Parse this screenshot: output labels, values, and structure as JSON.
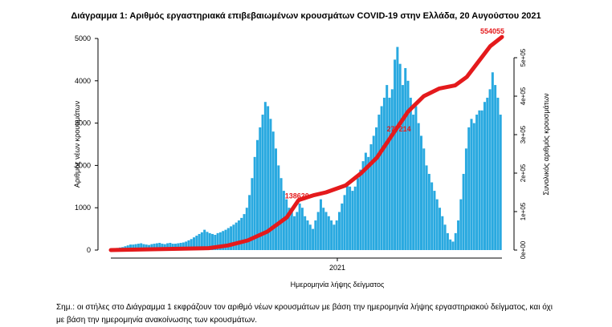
{
  "chart_data": {
    "type": "bar",
    "title": "Διάγραμμα 1: Αριθμός εργαστηριακά επιβεβαιωμένων κρουσμάτων COVID-19 στην Ελλάδα, 20 Αυγούστου 2021",
    "xlabel": "Ημερομηνία λήψης δείγματος",
    "ylabel": "Αριθμός νέων κρουσμάτων",
    "y2label": "Συνολικός αριθμός κρουσμάτων",
    "x_tick_labels": [
      "2021"
    ],
    "y_ticks": [
      "0",
      "1000",
      "2000",
      "3000",
      "4000",
      "5000"
    ],
    "y2_ticks": [
      "0e+00",
      "1e+05",
      "2e+05",
      "3e+05",
      "4e+05",
      "5e+05"
    ],
    "ylim": [
      0,
      5000
    ],
    "y2lim": [
      0,
      550000
    ],
    "bar_color": "#29a9e0",
    "line_color": "#e41a1c",
    "series": [
      {
        "kind": "bar",
        "values": [
          30,
          40,
          50,
          60,
          70,
          90,
          110,
          130,
          130,
          140,
          150,
          160,
          140,
          130,
          120,
          140,
          150,
          160,
          170,
          150,
          140,
          160,
          170,
          150,
          150,
          160,
          170,
          180,
          200,
          230,
          260,
          300,
          340,
          380,
          420,
          480,
          430,
          400,
          380,
          360,
          400,
          420,
          450,
          480,
          520,
          560,
          600,
          650,
          700,
          760,
          850,
          1000,
          1300,
          1700,
          2200,
          2600,
          2900,
          3200,
          3500,
          3400,
          3100,
          2800,
          2400,
          2000,
          1700,
          1400,
          1200,
          1000,
          900,
          800,
          900,
          1100,
          1000,
          800,
          700,
          600,
          500,
          700,
          900,
          1200,
          1000,
          900,
          800,
          700,
          600,
          700,
          900,
          1100,
          1300,
          1600,
          1500,
          1400,
          1500,
          1700,
          1900,
          2100,
          2300,
          2200,
          2500,
          2700,
          2900,
          3200,
          3400,
          3600,
          3900,
          3600,
          3800,
          4500,
          4800,
          4400,
          3900,
          4300,
          4000,
          3600,
          3200,
          3400,
          3000,
          2700,
          2400,
          2000,
          1800,
          1600,
          1400,
          1200,
          1000,
          800,
          600,
          400,
          250,
          200,
          400,
          700,
          1200,
          1800,
          2400,
          2900,
          3100,
          3000,
          3200,
          3300,
          3300,
          3500,
          3600,
          3800,
          4200,
          3900,
          3600,
          3200
        ]
      },
      {
        "kind": "line",
        "name": "cumulative",
        "x_fraction": [
          0.0,
          0.25,
          0.3,
          0.35,
          0.4,
          0.45,
          0.48,
          0.52,
          0.55,
          0.6,
          0.64,
          0.68,
          0.72,
          0.76,
          0.8,
          0.84,
          0.88,
          0.91,
          0.94,
          0.97,
          1.0
        ],
        "values": [
          0,
          5000,
          12000,
          25000,
          48000,
          85000,
          130000,
          143000,
          150000,
          168000,
          200000,
          240000,
          300000,
          360000,
          400000,
          420000,
          428000,
          450000,
          490000,
          530000,
          554055
        ]
      }
    ],
    "annotations": [
      "138620",
      "277214",
      "554055"
    ]
  },
  "note_lines": [
    "Σημ.: οι στήλες στο Διάγραμμα 1 εκφράζουν τον αριθμό νέων κρουσμάτων με βάση την ημερομηνία λήψης εργαστηριακού δείγματος, και όχι",
    "με βάση την ημερομηνία ανακοίνωσης των κρουσμάτων."
  ]
}
